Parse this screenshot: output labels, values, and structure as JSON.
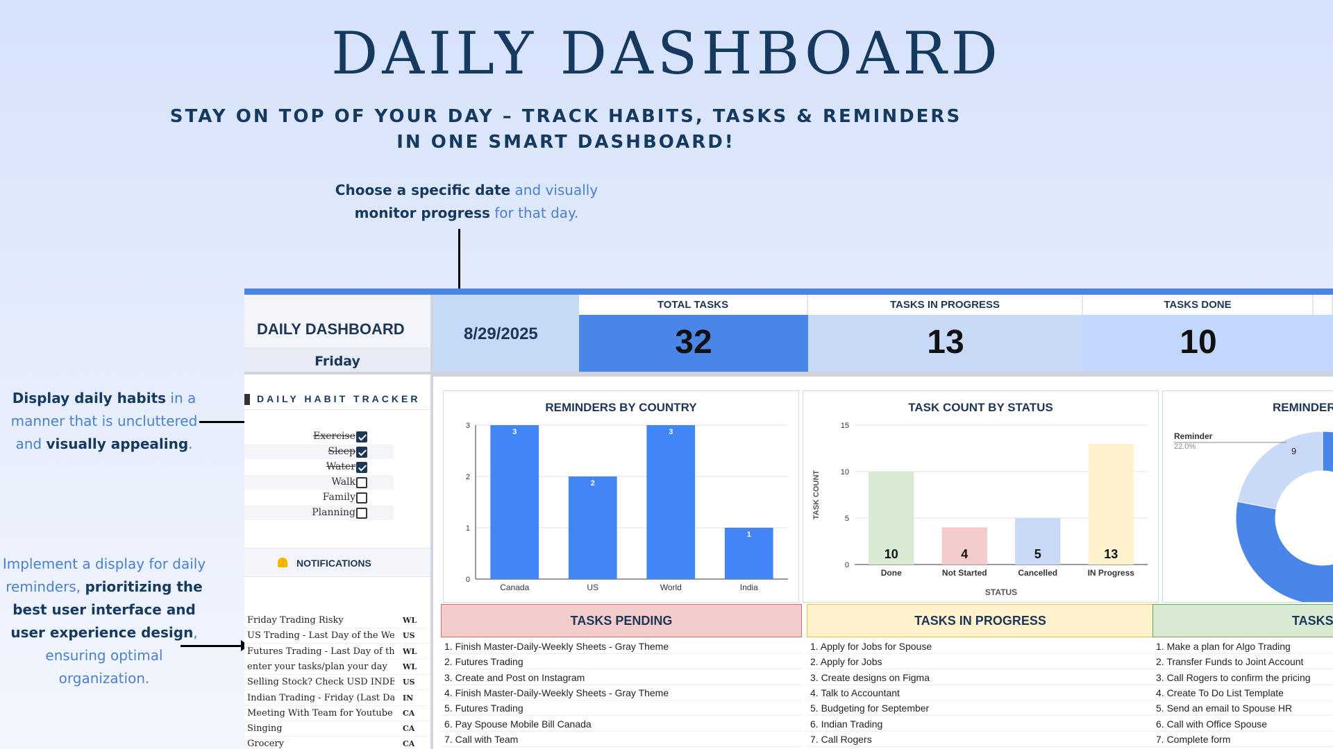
{
  "header": {
    "title": "DAILY DASHBOARD",
    "subtitle_line1": "STAY ON TOP OF YOUR DAY – TRACK HABITS, TASKS & REMINDERS",
    "subtitle_line2": "IN ONE SMART DASHBOARD!"
  },
  "annotations": {
    "date": {
      "b1": "Choose a specific date",
      "t1": " and visually",
      "b2": "monitor progress",
      "t2": " for that day."
    },
    "habits": {
      "b1": "Display daily habits",
      "t1": " in a manner that is uncluttered and ",
      "b2": "visually appealing",
      "t2": "."
    },
    "reminders": {
      "t1": "Implement a display for daily reminders, ",
      "b1": "prioritizing the best user interface and user experience design",
      "t2": ", ensuring optimal organization."
    }
  },
  "dashboard": {
    "title": "DAILY DASHBOARD",
    "day": "Friday",
    "date": "8/29/2025",
    "habit_tracker_title": "DAILY HABIT TRACKER",
    "habits": [
      {
        "label": "Exercise",
        "done": true
      },
      {
        "label": "Sleep",
        "done": true
      },
      {
        "label": "Water",
        "done": true
      },
      {
        "label": "Walk",
        "done": false
      },
      {
        "label": "Family",
        "done": false
      },
      {
        "label": "Planning",
        "done": false
      }
    ],
    "notifications_title": "NOTIFICATIONS",
    "notifications": [
      {
        "text": "Friday Trading Risky",
        "code": "WL"
      },
      {
        "text": "US Trading - Last Day of the Week",
        "code": "US"
      },
      {
        "text": "Futures Trading - Last Day of the Week",
        "code": "WL"
      },
      {
        "text": "enter your tasks/plan your day",
        "code": "WL"
      },
      {
        "text": "Selling Stock? Check USD INDEX",
        "code": "US"
      },
      {
        "text": "Indian Trading - Friday (Last Day",
        "code": "IN"
      },
      {
        "text": "Meeting With Team for Youtube A",
        "code": "CA"
      },
      {
        "text": "Singing",
        "code": "CA"
      },
      {
        "text": "Grocery",
        "code": "CA"
      }
    ],
    "kpis": [
      {
        "label": "TOTAL TASKS",
        "value": "32",
        "color": "#4a86e8"
      },
      {
        "label": "TASKS IN PROGRESS",
        "value": "13",
        "color": "#c9daf8"
      },
      {
        "label": "TASKS DONE",
        "value": "10",
        "color": "#c2d7fb"
      }
    ],
    "task_columns": [
      {
        "title": "TASKS PENDING",
        "bg": "#f4cccc",
        "border": "#e06666",
        "items": [
          "1. Finish Master-Daily-Weekly Sheets - Gray Theme",
          "2. Futures Trading",
          "3. Create and Post on Instagram",
          "4. Finish Master-Daily-Weekly Sheets - Gray Theme",
          "5. Futures Trading",
          "6. Pay Spouse Mobile Bill Canada",
          "7. Call with Team"
        ]
      },
      {
        "title": "TASKS IN PROGRESS",
        "bg": "#fff2cc",
        "border": "#f1c232",
        "items": [
          "1. Apply for Jobs for Spouse",
          "2. Apply for Jobs",
          "3. Create designs on Figma",
          "4. Talk to Accountant",
          "5. Budgeting for September",
          "6. Indian Trading",
          "7. Call Rogers"
        ]
      },
      {
        "title": "TASKS",
        "bg": "#d9ead3",
        "border": "#6aa84f",
        "items": [
          "1. Make a plan for Algo Trading",
          "2. Transfer Funds to Joint Account",
          "3. Call Rogers to confirm the pricing",
          "4. Create To Do List Template",
          "5. Send an email to Spouse HR",
          "6. Call with Office Spouse",
          "7. Complete form"
        ]
      }
    ]
  },
  "chart_data": [
    {
      "type": "bar",
      "title": "REMINDERS BY COUNTRY",
      "categories": [
        "Canada",
        "US",
        "World",
        "India"
      ],
      "values": [
        3,
        2,
        3,
        1
      ],
      "ylim": [
        0,
        3
      ],
      "yticks": [
        0,
        1,
        2,
        3
      ],
      "color": "#4285f4"
    },
    {
      "type": "bar",
      "title": "TASK COUNT BY STATUS",
      "categories": [
        "Done",
        "Not Started",
        "Cancelled",
        "IN Progress"
      ],
      "values": [
        10,
        4,
        5,
        13
      ],
      "colors": [
        "#d9ead3",
        "#f4cccc",
        "#c9daf8",
        "#fff2cc"
      ],
      "xlabel": "STATUS",
      "ylabel": "TASK COUNT",
      "ylim": [
        0,
        15
      ],
      "yticks": [
        0,
        5,
        10,
        15
      ]
    },
    {
      "type": "pie",
      "title": "REMINDER",
      "slices": [
        {
          "label": "Reminder",
          "value": 9,
          "percent": "22.0%",
          "color": "#c9daf8"
        },
        {
          "label": "",
          "value": 32,
          "color": "#4a86e8"
        }
      ]
    }
  ]
}
